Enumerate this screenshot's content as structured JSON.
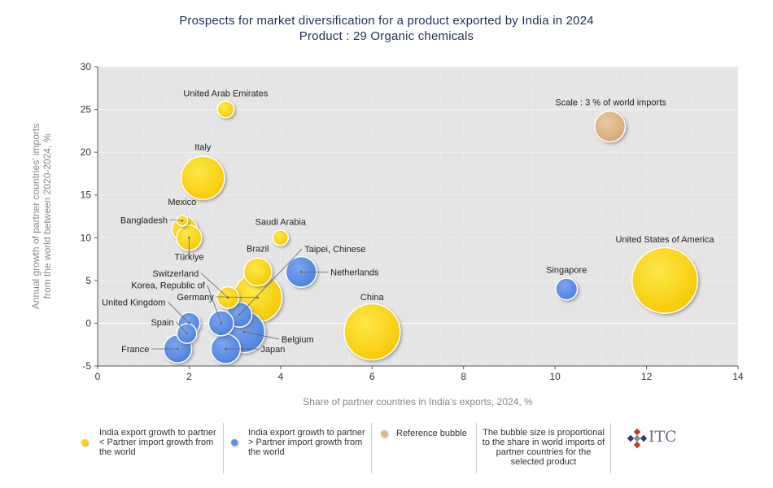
{
  "title_line1": "Prospects for market diversification for a product exported by India in 2024",
  "title_line2": "Product : 29 Organic chemicals",
  "chart_data": {
    "type": "scatter",
    "bubble": true,
    "title": "Prospects for market diversification for a product exported by India in 2024",
    "subtitle": "Product : 29 Organic chemicals",
    "xlabel": "Share of partner countries in India's exports, 2024, %",
    "ylabel": "Annual growth of partner countries' imports from the world between 2020-2024, %",
    "xlim": [
      0,
      14
    ],
    "ylim": [
      -5,
      30
    ],
    "x_ticks": [
      "0",
      "2",
      "4",
      "6",
      "8",
      "10",
      "12",
      "14"
    ],
    "y_ticks": [
      "-5",
      "0",
      "5",
      "10",
      "15",
      "20",
      "25",
      "30"
    ],
    "colors": {
      "yellow": "#ffd700",
      "blue": "#5b8fe8",
      "reference": "#deb887"
    },
    "points": [
      {
        "label": "United Arab Emirates",
        "x": 2.8,
        "y": 25,
        "size": 0.35,
        "color": "yellow"
      },
      {
        "label": "Italy",
        "x": 2.3,
        "y": 17,
        "size": 2.4,
        "color": "yellow"
      },
      {
        "label": "Mexico",
        "x": 1.9,
        "y": 11,
        "size": 0.8,
        "color": "yellow"
      },
      {
        "label": "Bangladesh",
        "x": 1.85,
        "y": 12,
        "size": 0.15,
        "color": "yellow"
      },
      {
        "label": "Türkiye",
        "x": 2.0,
        "y": 10,
        "size": 0.8,
        "color": "yellow"
      },
      {
        "label": "Saudi Arabia",
        "x": 4.0,
        "y": 10,
        "size": 0.3,
        "color": "yellow"
      },
      {
        "label": "Brazil",
        "x": 3.5,
        "y": 6,
        "size": 1.0,
        "color": "yellow"
      },
      {
        "label": "Germany",
        "x": 3.5,
        "y": 3,
        "size": 3.0,
        "color": "yellow"
      },
      {
        "label": "Switzerland",
        "x": 2.85,
        "y": 3,
        "size": 0.6,
        "color": "yellow"
      },
      {
        "label": "Taipei, Chinese",
        "x": 3.1,
        "y": 1,
        "size": 0.8,
        "color": "blue"
      },
      {
        "label": "Netherlands",
        "x": 4.45,
        "y": 6,
        "size": 1.2,
        "color": "blue"
      },
      {
        "label": "Korea, Republic of",
        "x": 2.7,
        "y": 0,
        "size": 0.8,
        "color": "blue"
      },
      {
        "label": "United Kingdom",
        "x": 2.0,
        "y": 0,
        "size": 0.6,
        "color": "blue"
      },
      {
        "label": "Spain",
        "x": 1.95,
        "y": -1.2,
        "size": 0.5,
        "color": "blue"
      },
      {
        "label": "Belgium",
        "x": 3.2,
        "y": -1,
        "size": 2.2,
        "color": "blue"
      },
      {
        "label": "Japan",
        "x": 2.8,
        "y": -3,
        "size": 1.1,
        "color": "blue"
      },
      {
        "label": "France",
        "x": 1.75,
        "y": -3,
        "size": 1.0,
        "color": "blue"
      },
      {
        "label": "China",
        "x": 6.0,
        "y": -1,
        "size": 4.0,
        "color": "yellow"
      },
      {
        "label": "Singapore",
        "x": 10.25,
        "y": 4,
        "size": 0.6,
        "color": "blue"
      },
      {
        "label": "United States of America",
        "x": 12.4,
        "y": 5,
        "size": 5.5,
        "color": "yellow"
      },
      {
        "label": "Scale : 3 % of world imports",
        "x": 11.2,
        "y": 23,
        "size": 1.2,
        "color": "reference"
      }
    ]
  },
  "legend": {
    "yellow_label": "India export growth to partner < Partner import growth from the world",
    "blue_label": "India export growth to partner > Partner import growth from the world",
    "reference_label": "Reference bubble",
    "note": "The bubble size is proportional to the share in world imports of partner countries for the selected product"
  },
  "logo": {
    "text": "ITC"
  }
}
